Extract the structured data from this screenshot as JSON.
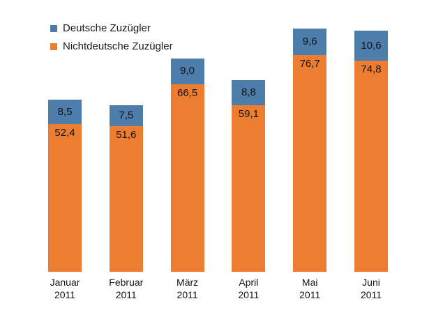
{
  "colors": {
    "deutsche_blue": "#4C7DAB",
    "nichtdeutsche_orange": "#ED7D31",
    "label_text": "#141414"
  },
  "chart_data": {
    "type": "bar",
    "subtype": "stacked-column",
    "title": "",
    "xlabel": "",
    "ylabel": "",
    "grid": false,
    "legend_position": "top-left",
    "ylim": [
      0,
      90
    ],
    "categories": [
      {
        "month": "Januar",
        "year": "2011"
      },
      {
        "month": "Februar",
        "year": "2011"
      },
      {
        "month": "März",
        "year": "2011"
      },
      {
        "month": "April",
        "year": "2011"
      },
      {
        "month": "Mai",
        "year": "2011"
      },
      {
        "month": "Juni",
        "year": "2011"
      }
    ],
    "series": [
      {
        "name": "Deutsche Zuzügler",
        "color_key": "deutsche_blue",
        "values": [
          8.5,
          7.5,
          9.0,
          8.8,
          9.6,
          10.6
        ],
        "labels": [
          "8,5",
          "7,5",
          "9,0",
          "8,8",
          "9,6",
          "10,6"
        ]
      },
      {
        "name": "Nichtdeutsche Zuzügler",
        "color_key": "nichtdeutsche_orange",
        "values": [
          52.4,
          51.6,
          66.5,
          59.1,
          76.7,
          74.8
        ],
        "labels": [
          "52,4",
          "51,6",
          "66,5",
          "59,1",
          "76,7",
          "74,8"
        ]
      }
    ]
  }
}
